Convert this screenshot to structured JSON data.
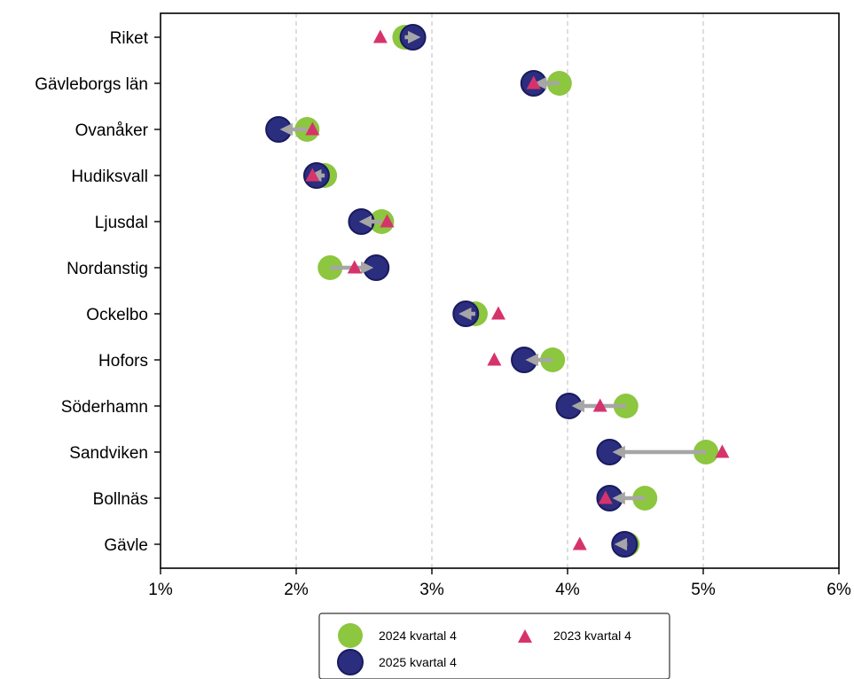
{
  "chart_data": {
    "type": "scatter",
    "x_axis": {
      "min": 1,
      "max": 6,
      "ticks": [
        1,
        2,
        3,
        4,
        5,
        6
      ],
      "tick_labels": [
        "1%",
        "2%",
        "3%",
        "4%",
        "5%",
        "6%"
      ],
      "grid": "vertical dashed"
    },
    "categories": [
      "Riket",
      "Gävleborgs län",
      "Ovanåker",
      "Hudiksvall",
      "Ljusdal",
      "Nordanstig",
      "Ockelbo",
      "Hofors",
      "Söderhamn",
      "Sandviken",
      "Bollnäs",
      "Gävle"
    ],
    "series": [
      {
        "name": "2024 kvartal 4",
        "marker": "circle",
        "color": "#8dc63f",
        "values": [
          2.8,
          3.94,
          2.08,
          2.21,
          2.63,
          2.25,
          3.32,
          3.89,
          4.43,
          5.02,
          4.57,
          4.44
        ]
      },
      {
        "name": "2025 kvartal 4",
        "marker": "circle",
        "color": "#2b2d7e",
        "values": [
          2.86,
          3.75,
          1.87,
          2.15,
          2.48,
          2.59,
          3.25,
          3.68,
          4.01,
          4.31,
          4.31,
          4.42
        ]
      },
      {
        "name": "2023 kvartal 4",
        "marker": "triangle",
        "color": "#d6336c",
        "values": [
          2.62,
          3.75,
          2.12,
          2.12,
          2.67,
          2.43,
          3.49,
          3.46,
          4.24,
          5.14,
          4.28,
          4.09
        ]
      }
    ],
    "arrows": "grey arrow from 2024 kvartal 4 to 2025 kvartal 4 for each category",
    "legend": {
      "position": "bottom-center",
      "entries": [
        "2024 kvartal 4",
        "2023 kvartal 4",
        "2025 kvartal 4"
      ]
    }
  }
}
